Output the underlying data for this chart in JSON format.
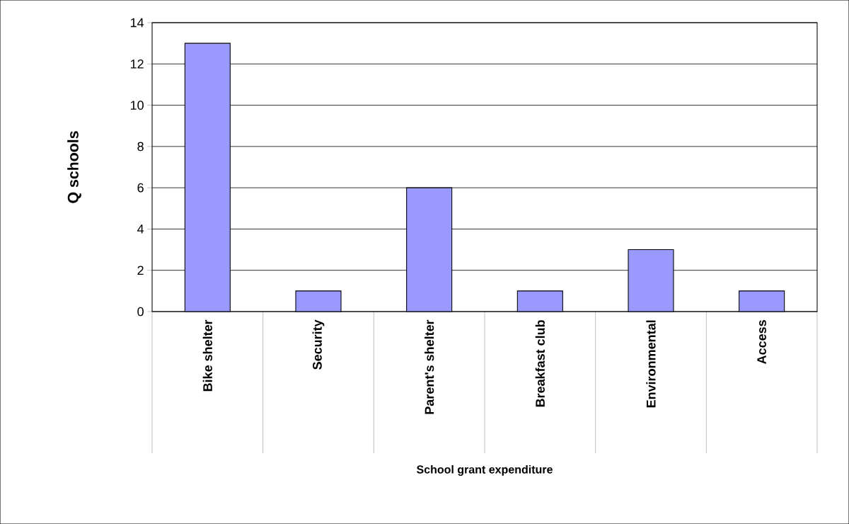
{
  "chart_data": {
    "type": "bar",
    "xlabel": "School grant expenditure",
    "ylabel": "Q schools",
    "categories": [
      "Bike shelter",
      "Security",
      "Parent's shelter",
      "Breakfast club",
      "Environmental",
      "Access"
    ],
    "values": [
      13,
      1,
      6,
      1,
      3,
      1
    ],
    "color": "#9999ff",
    "ylim": [
      0,
      14
    ],
    "yticks": [
      0,
      2,
      4,
      6,
      8,
      10,
      12,
      14
    ],
    "grid": "y"
  }
}
